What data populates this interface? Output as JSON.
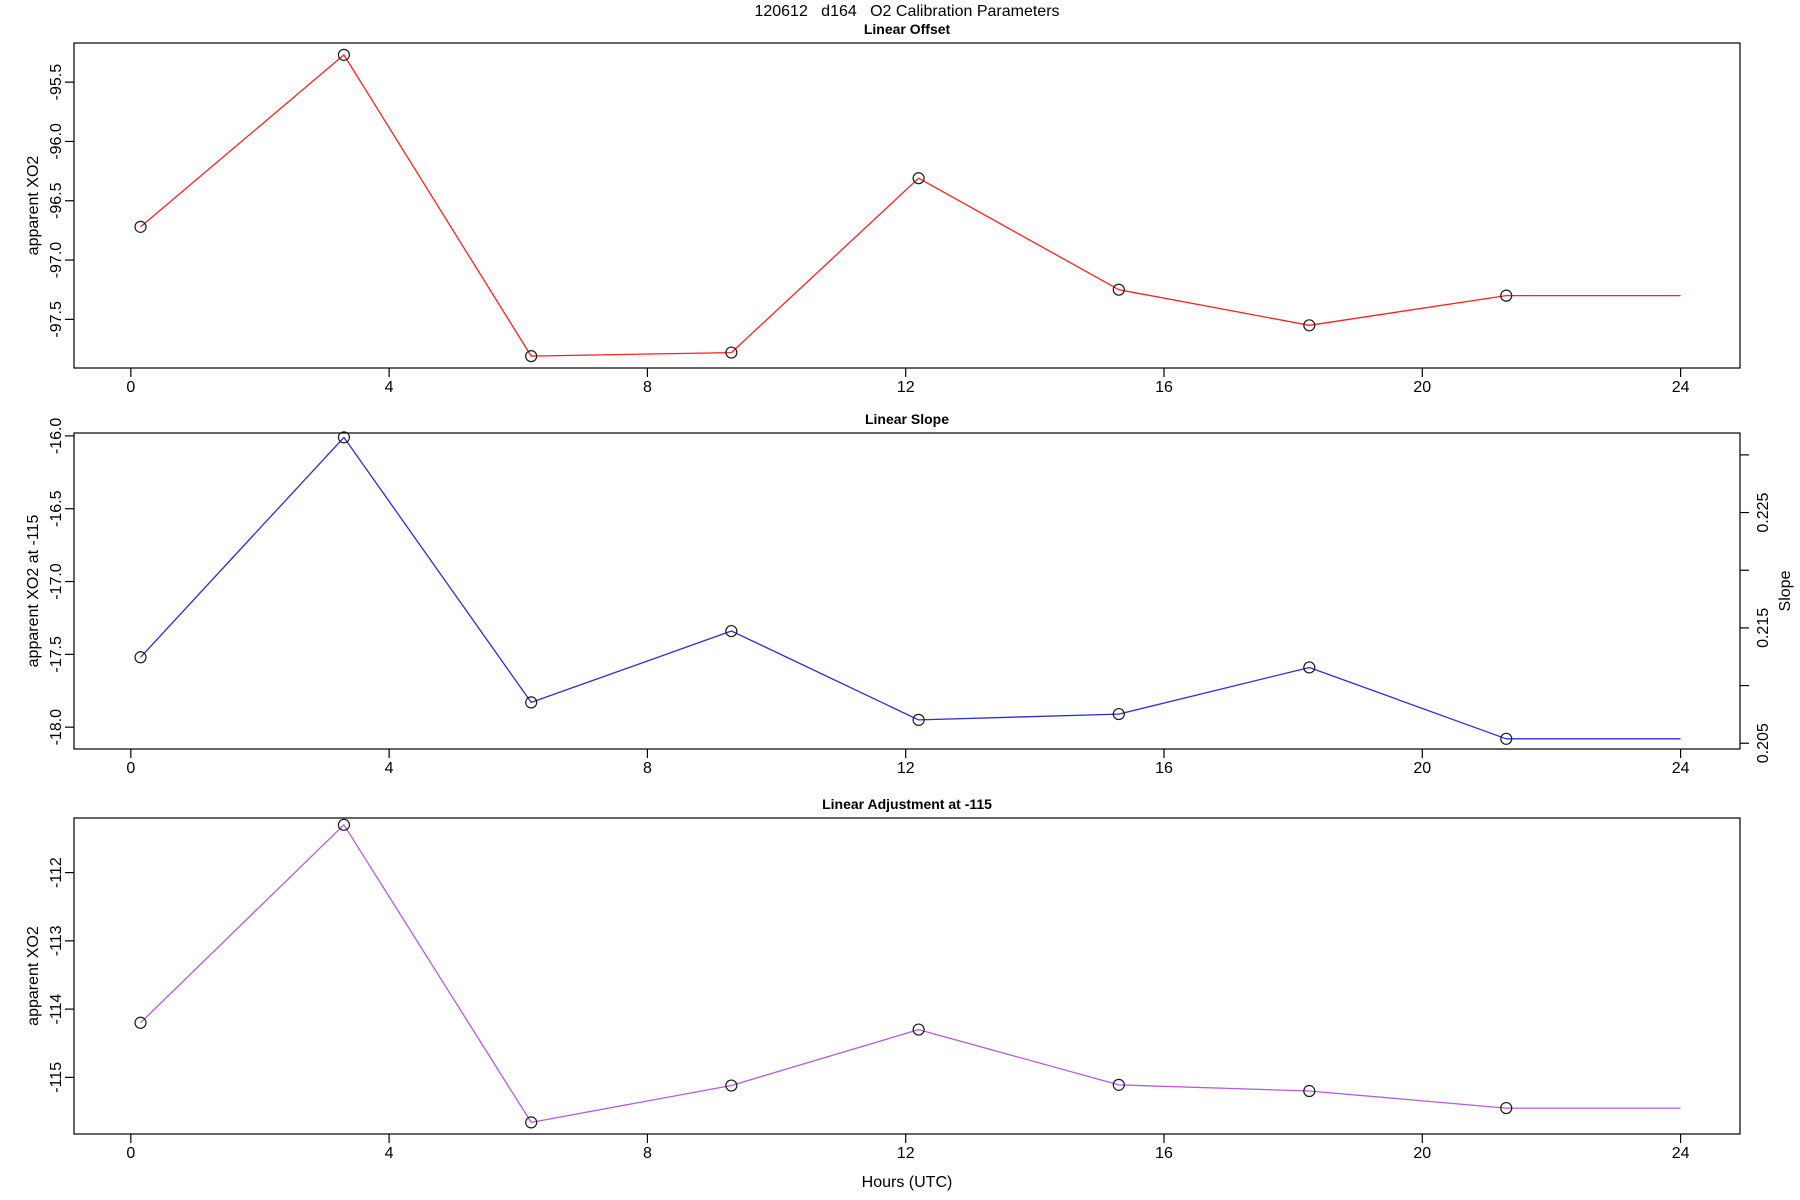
{
  "title": "120612   d164   O2 Calibration Parameters",
  "xlabel": "Hours (UTC)",
  "colors": {
    "offset_line": "#ff2020",
    "slope_line": "#2c2cdc",
    "adjustment_line": "#b45ce0",
    "marker_stroke": "#1a1a1a",
    "axis": "#000000"
  },
  "marker": "open-circle",
  "chart_data": [
    {
      "type": "line",
      "title": "Linear Offset",
      "ylabel": "apparent XO2",
      "line_color": "#ff2020",
      "x": [
        0.15,
        3.3,
        6.2,
        9.3,
        12.2,
        15.3,
        18.25,
        21.3
      ],
      "y": [
        -96.72,
        -95.27,
        -97.81,
        -97.78,
        -96.31,
        -97.25,
        -97.55,
        -97.3
      ],
      "extend": {
        "x": 24,
        "y": -97.3
      },
      "xticks": [
        0,
        4,
        8,
        12,
        16,
        20,
        24
      ],
      "ytick_values": [
        -97.5,
        -97.0,
        -96.5,
        -96.0,
        -95.5
      ],
      "ytick_labels": [
        "-97.5",
        "-97.0",
        "-96.5",
        "-96.0",
        "-95.5"
      ],
      "xlim": [
        -0.88,
        24.92
      ],
      "ylim": [
        -97.91,
        -95.17
      ],
      "grid": false
    },
    {
      "type": "line",
      "title": "Linear Slope",
      "ylabel": "apparent XO2 at -115",
      "ylabel_right": "Slope",
      "line_color": "#2c2cdc",
      "x": [
        0.15,
        3.3,
        6.2,
        9.3,
        12.2,
        15.3,
        18.25,
        21.3
      ],
      "y": [
        -17.52,
        -16.01,
        -17.83,
        -17.34,
        -17.95,
        -17.91,
        -17.59,
        -18.08
      ],
      "extend": {
        "x": 24,
        "y": -18.08
      },
      "xticks": [
        0,
        4,
        8,
        12,
        16,
        20,
        24
      ],
      "ytick_values": [
        -18.0,
        -17.5,
        -17.0,
        -16.5,
        -16.0
      ],
      "ytick_labels": [
        "-18.0",
        "-17.5",
        "-17.0",
        "-16.5",
        "-16.0"
      ],
      "xlim": [
        -0.88,
        24.92
      ],
      "ylim": [
        -18.15,
        -15.98
      ],
      "right_axis": {
        "lim": [
          0.2045,
          0.2319
        ],
        "tick_values": [
          0.23,
          0.225,
          0.22,
          0.215,
          0.21,
          0.205
        ],
        "labeled_values": [
          0.225,
          0.215,
          0.205
        ],
        "labels": [
          "0.225",
          "0.215",
          "0.205"
        ]
      },
      "grid": false
    },
    {
      "type": "line",
      "title": "Linear Adjustment at -115",
      "ylabel": "apparent XO2",
      "line_color": "#b45ce0",
      "x": [
        0.15,
        3.3,
        6.2,
        9.3,
        12.2,
        15.3,
        18.25,
        21.3
      ],
      "y": [
        -114.2,
        -111.3,
        -115.66,
        -115.12,
        -114.3,
        -115.11,
        -115.2,
        -115.45
      ],
      "extend": {
        "x": 24,
        "y": -115.45
      },
      "xticks": [
        0,
        4,
        8,
        12,
        16,
        20,
        24
      ],
      "ytick_values": [
        -115,
        -114,
        -113,
        -112
      ],
      "ytick_labels": [
        "-115",
        "-114",
        "-113",
        "-112"
      ],
      "xlim": [
        -0.88,
        24.92
      ],
      "ylim": [
        -115.83,
        -111.2
      ],
      "grid": false
    }
  ]
}
